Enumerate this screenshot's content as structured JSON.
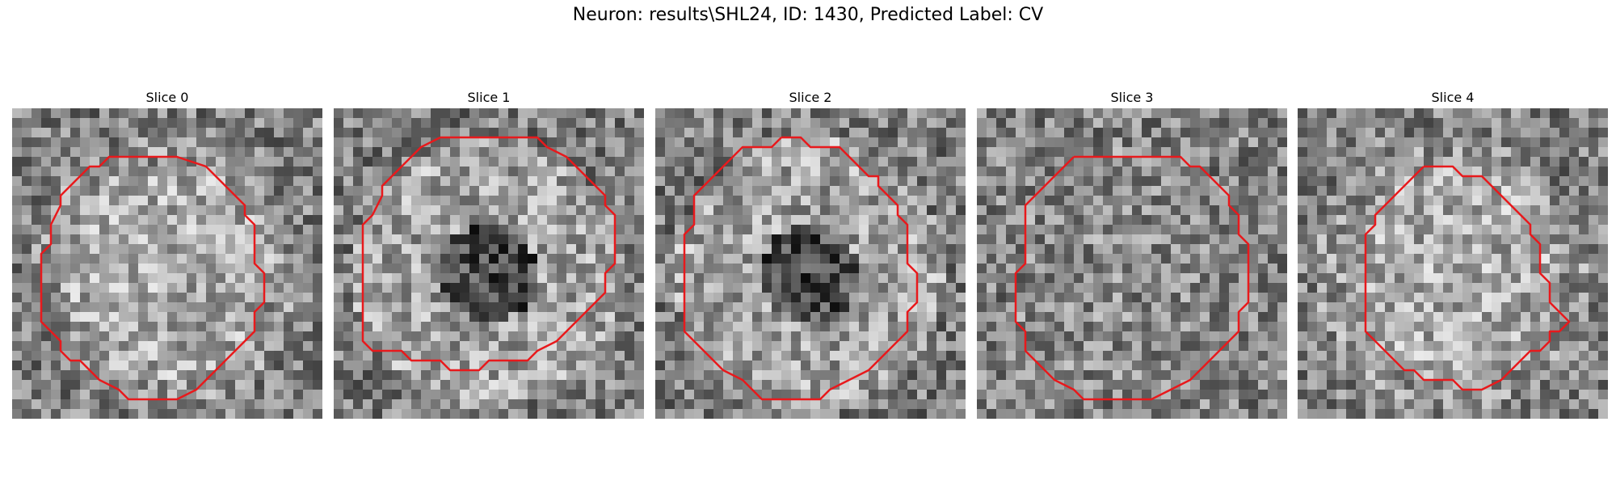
{
  "title": "Neuron: results\\SHL24, ID: 1430, Predicted Label: CV",
  "contour_color": "#e8191c",
  "grid_size": 32,
  "panels": [
    {
      "label": "Slice 0",
      "seed": 11,
      "contrast": "bright-center",
      "contour": [
        [
          12,
          5
        ],
        [
          17,
          5
        ],
        [
          20,
          6
        ],
        [
          21,
          7
        ],
        [
          22,
          8
        ],
        [
          23,
          9
        ],
        [
          24,
          10
        ],
        [
          24,
          11
        ],
        [
          25,
          12
        ],
        [
          25,
          16
        ],
        [
          26,
          17
        ],
        [
          26,
          20
        ],
        [
          25,
          21
        ],
        [
          25,
          23
        ],
        [
          24,
          24
        ],
        [
          23,
          25
        ],
        [
          22,
          26
        ],
        [
          21,
          27
        ],
        [
          20,
          28
        ],
        [
          19,
          29
        ],
        [
          17,
          30
        ],
        [
          12,
          30
        ],
        [
          11,
          29
        ],
        [
          9,
          28
        ],
        [
          8,
          27
        ],
        [
          7,
          26
        ],
        [
          6,
          26
        ],
        [
          5,
          25
        ],
        [
          5,
          24
        ],
        [
          4,
          23
        ],
        [
          3,
          22
        ],
        [
          3,
          21
        ],
        [
          3,
          15
        ],
        [
          4,
          14
        ],
        [
          4,
          12
        ],
        [
          5,
          10
        ],
        [
          5,
          9
        ],
        [
          6,
          8
        ],
        [
          7,
          7
        ],
        [
          8,
          6
        ],
        [
          9,
          6
        ],
        [
          10,
          5
        ],
        [
          12,
          5
        ]
      ]
    },
    {
      "label": "Slice 1",
      "seed": 23,
      "contrast": "dark-center",
      "contour": [
        [
          11,
          3
        ],
        [
          21,
          3
        ],
        [
          22,
          4
        ],
        [
          24,
          5
        ],
        [
          25,
          6
        ],
        [
          26,
          7
        ],
        [
          27,
          8
        ],
        [
          28,
          9
        ],
        [
          28,
          10
        ],
        [
          29,
          11
        ],
        [
          29,
          12
        ],
        [
          29,
          16
        ],
        [
          28,
          17
        ],
        [
          28,
          19
        ],
        [
          27,
          20
        ],
        [
          26,
          21
        ],
        [
          25,
          22
        ],
        [
          24,
          23
        ],
        [
          23,
          24
        ],
        [
          21,
          25
        ],
        [
          20,
          26
        ],
        [
          16,
          26
        ],
        [
          15,
          27
        ],
        [
          12,
          27
        ],
        [
          11,
          26
        ],
        [
          8,
          26
        ],
        [
          7,
          25
        ],
        [
          4,
          25
        ],
        [
          3,
          24
        ],
        [
          3,
          23
        ],
        [
          3,
          12
        ],
        [
          4,
          11
        ],
        [
          5,
          9
        ],
        [
          5,
          8
        ],
        [
          6,
          7
        ],
        [
          7,
          6
        ],
        [
          8,
          5
        ],
        [
          9,
          4
        ],
        [
          11,
          3
        ]
      ]
    },
    {
      "label": "Slice 2",
      "seed": 37,
      "contrast": "dark-center",
      "contour": [
        [
          13,
          3
        ],
        [
          15,
          3
        ],
        [
          16,
          4
        ],
        [
          19,
          4
        ],
        [
          20,
          5
        ],
        [
          21,
          6
        ],
        [
          22,
          7
        ],
        [
          23,
          7
        ],
        [
          23,
          8
        ],
        [
          24,
          9
        ],
        [
          25,
          10
        ],
        [
          25,
          11
        ],
        [
          26,
          12
        ],
        [
          26,
          16
        ],
        [
          27,
          17
        ],
        [
          27,
          20
        ],
        [
          26,
          21
        ],
        [
          26,
          23
        ],
        [
          25,
          24
        ],
        [
          24,
          25
        ],
        [
          23,
          26
        ],
        [
          22,
          27
        ],
        [
          20,
          28
        ],
        [
          18,
          29
        ],
        [
          17,
          30
        ],
        [
          11,
          30
        ],
        [
          10,
          29
        ],
        [
          9,
          28
        ],
        [
          7,
          27
        ],
        [
          6,
          26
        ],
        [
          5,
          25
        ],
        [
          4,
          24
        ],
        [
          3,
          23
        ],
        [
          3,
          13
        ],
        [
          4,
          12
        ],
        [
          4,
          9
        ],
        [
          5,
          8
        ],
        [
          6,
          7
        ],
        [
          7,
          6
        ],
        [
          8,
          5
        ],
        [
          9,
          4
        ],
        [
          12,
          4
        ],
        [
          13,
          3
        ]
      ]
    },
    {
      "label": "Slice 3",
      "seed": 53,
      "contrast": "flat",
      "contour": [
        [
          10,
          5
        ],
        [
          21,
          5
        ],
        [
          22,
          6
        ],
        [
          23,
          6
        ],
        [
          24,
          7
        ],
        [
          25,
          8
        ],
        [
          26,
          9
        ],
        [
          26,
          10
        ],
        [
          27,
          11
        ],
        [
          27,
          13
        ],
        [
          28,
          14
        ],
        [
          28,
          20
        ],
        [
          27,
          21
        ],
        [
          27,
          23
        ],
        [
          26,
          24
        ],
        [
          25,
          25
        ],
        [
          24,
          26
        ],
        [
          23,
          27
        ],
        [
          22,
          28
        ],
        [
          20,
          29
        ],
        [
          18,
          30
        ],
        [
          11,
          30
        ],
        [
          10,
          29
        ],
        [
          8,
          28
        ],
        [
          7,
          27
        ],
        [
          6,
          26
        ],
        [
          5,
          25
        ],
        [
          5,
          23
        ],
        [
          4,
          22
        ],
        [
          4,
          17
        ],
        [
          5,
          16
        ],
        [
          5,
          10
        ],
        [
          6,
          9
        ],
        [
          7,
          8
        ],
        [
          8,
          7
        ],
        [
          9,
          6
        ],
        [
          10,
          5
        ]
      ]
    },
    {
      "label": "Slice 4",
      "seed": 71,
      "contrast": "bright-center",
      "contour": [
        [
          13,
          6
        ],
        [
          16,
          6
        ],
        [
          17,
          7
        ],
        [
          19,
          7
        ],
        [
          20,
          8
        ],
        [
          21,
          9
        ],
        [
          22,
          10
        ],
        [
          23,
          11
        ],
        [
          24,
          12
        ],
        [
          24,
          13
        ],
        [
          25,
          14
        ],
        [
          25,
          17
        ],
        [
          26,
          18
        ],
        [
          26,
          20
        ],
        [
          27,
          21
        ],
        [
          28,
          22
        ],
        [
          27,
          23
        ],
        [
          26,
          23
        ],
        [
          26,
          24
        ],
        [
          25,
          25
        ],
        [
          24,
          25
        ],
        [
          23,
          26
        ],
        [
          22,
          27
        ],
        [
          21,
          28
        ],
        [
          19,
          29
        ],
        [
          17,
          29
        ],
        [
          16,
          28
        ],
        [
          13,
          28
        ],
        [
          12,
          27
        ],
        [
          11,
          27
        ],
        [
          10,
          26
        ],
        [
          9,
          25
        ],
        [
          8,
          24
        ],
        [
          7,
          23
        ],
        [
          7,
          22
        ],
        [
          7,
          13
        ],
        [
          8,
          12
        ],
        [
          8,
          11
        ],
        [
          9,
          10
        ],
        [
          10,
          9
        ],
        [
          11,
          8
        ],
        [
          12,
          7
        ],
        [
          13,
          6
        ]
      ]
    }
  ]
}
